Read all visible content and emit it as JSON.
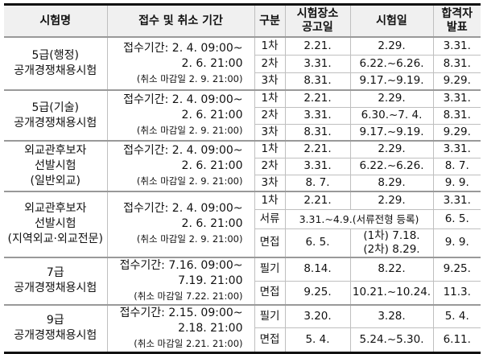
{
  "headers": [
    "시험명",
    "접수 및 취소 기간",
    "구분",
    "시험장소\n공고일",
    "시험일",
    "합격자\n발표"
  ],
  "groups": [
    {
      "name": [
        "5급(행정)",
        "공개경쟁채용시험"
      ],
      "period": [
        "접수기간: 2. 4. 09:00~",
        "2. 6. 21:00",
        "(취소 마감일 2. 9. 21:00)"
      ],
      "rows": [
        [
          "1차",
          "2.21.",
          "2.29.",
          "3.31."
        ],
        [
          "2차",
          "3.31.",
          "6.22.~6.26.",
          "8.31."
        ],
        [
          "3차",
          "8.31.",
          "9.17.~9.19.",
          "9.29."
        ]
      ]
    },
    {
      "name": [
        "5급(기술)",
        "공개경쟁채용시험"
      ],
      "period": [
        "접수기간: 2. 4. 09:00~",
        "2. 6. 21:00",
        "(취소 마감일 2. 9. 21:00)"
      ],
      "rows": [
        [
          "1차",
          "2.21.",
          "2.29.",
          "3.31."
        ],
        [
          "2차",
          "3.31.",
          "6.30.~7. 4.",
          "8.31."
        ],
        [
          "3차",
          "8.31.",
          "9.17.~9.19.",
          "9.29."
        ]
      ]
    },
    {
      "name": [
        "외교관후보자",
        "선발시험",
        "(일반외교)"
      ],
      "period": [
        "접수기간: 2. 4. 09:00~",
        "2. 6. 21:00",
        "(취소 마감일 2. 9. 21:00)"
      ],
      "rows": [
        [
          "1차",
          "2.21.",
          "2.29.",
          "3.31."
        ],
        [
          "2차",
          "3.31.",
          "6.22.~6.26.",
          "8. 7."
        ],
        [
          "3차",
          "8. 7.",
          "8.29.",
          "9. 9."
        ]
      ]
    },
    {
      "name": [
        "외교관후보자",
        "선발시험",
        "(지역외교·외교전문)"
      ],
      "period": [
        "접수기간: 2. 4. 09:00~",
        "2. 6. 21:00",
        "(취소 마감일 2. 9. 21:00)"
      ],
      "rows": [
        [
          "1차",
          "2.21.",
          "2.29.",
          "3.31."
        ],
        [
          "서류",
          "3.31.~4.9.(서류전형 등록)",
          null,
          "6. 5."
        ],
        [
          "면접",
          "6. 5.",
          "(1차) 7.18.\n(2차) 8.29.",
          "9. 9."
        ]
      ]
    },
    {
      "name": [
        "7급",
        "공개경쟁채용시험"
      ],
      "period": [
        "접수기간: 7.16. 09:00~",
        "7.19. 21:00",
        "(취소 마감일 7.22. 21:00)"
      ],
      "rows": [
        [
          "필기",
          "8.14.",
          "8.22.",
          "9.25."
        ],
        [
          "면접",
          "9.25.",
          "10.21.~10.24.",
          "11.3."
        ]
      ]
    },
    {
      "name": [
        "9급",
        "공개경쟁채용시험"
      ],
      "period": [
        "접수기간: 2.15. 09:00~",
        "2.18. 21:00",
        "(취소 마감일 2.21. 21:00)"
      ],
      "rows": [
        [
          "필기",
          "3.20.",
          "3.28.",
          "5. 4."
        ],
        [
          "면접",
          "5. 4.",
          "5.24.~5.30.",
          "6.11."
        ]
      ]
    }
  ]
}
